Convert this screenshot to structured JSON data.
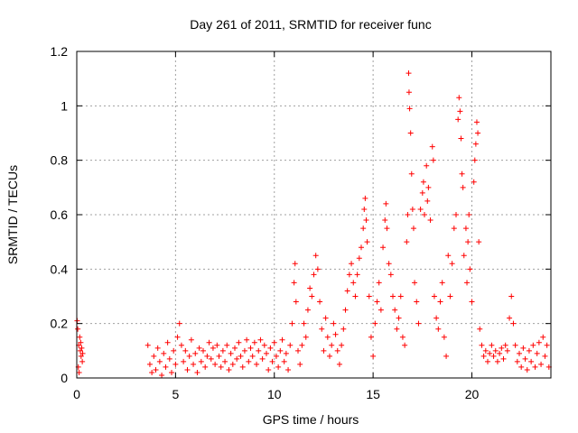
{
  "chart_data": {
    "type": "scatter",
    "title": "Day 261 of 2011, SRMTID for receiver func",
    "xlabel": "GPS time / hours",
    "ylabel": "SRMTID / TECUs",
    "xlim": [
      0,
      24
    ],
    "ylim": [
      0,
      1.2
    ],
    "xticks": [
      0,
      5,
      10,
      15,
      20
    ],
    "xtick_labels": [
      "0",
      "5",
      "10",
      "15",
      "20"
    ],
    "yticks": [
      0,
      0.2,
      0.4,
      0.6,
      0.8,
      1.0,
      1.2
    ],
    "ytick_labels": [
      "0",
      "0.2",
      "0.4",
      "0.6",
      "0.8",
      "1",
      "1.2"
    ],
    "grid": true,
    "marker": "+",
    "marker_color": "#ff0000",
    "series": [
      {
        "name": "SRMTID",
        "points": [
          [
            0.02,
            0.21
          ],
          [
            0.05,
            0.18
          ],
          [
            0.08,
            0.04
          ],
          [
            0.1,
            0.12
          ],
          [
            0.12,
            0.02
          ],
          [
            0.15,
            0.15
          ],
          [
            0.18,
            0.1
          ],
          [
            0.2,
            0.13
          ],
          [
            0.22,
            0.08
          ],
          [
            0.25,
            0.11
          ],
          [
            0.28,
            0.06
          ],
          [
            0.3,
            0.09
          ],
          [
            3.6,
            0.12
          ],
          [
            3.7,
            0.05
          ],
          [
            3.8,
            0.02
          ],
          [
            3.9,
            0.08
          ],
          [
            4.0,
            0.03
          ],
          [
            4.1,
            0.11
          ],
          [
            4.2,
            0.06
          ],
          [
            4.3,
            0.01
          ],
          [
            4.4,
            0.09
          ],
          [
            4.5,
            0.04
          ],
          [
            4.6,
            0.13
          ],
          [
            4.7,
            0.07
          ],
          [
            4.8,
            0.02
          ],
          [
            4.9,
            0.1
          ],
          [
            5.0,
            0.05
          ],
          [
            5.1,
            0.15
          ],
          [
            5.2,
            0.2
          ],
          [
            5.3,
            0.12
          ],
          [
            5.4,
            0.06
          ],
          [
            5.5,
            0.1
          ],
          [
            5.6,
            0.03
          ],
          [
            5.7,
            0.08
          ],
          [
            5.8,
            0.14
          ],
          [
            5.9,
            0.05
          ],
          [
            6.0,
            0.09
          ],
          [
            6.1,
            0.02
          ],
          [
            6.2,
            0.11
          ],
          [
            6.3,
            0.06
          ],
          [
            6.4,
            0.1
          ],
          [
            6.5,
            0.04
          ],
          [
            6.6,
            0.08
          ],
          [
            6.7,
            0.13
          ],
          [
            6.8,
            0.07
          ],
          [
            6.9,
            0.11
          ],
          [
            7.0,
            0.05
          ],
          [
            7.1,
            0.12
          ],
          [
            7.2,
            0.08
          ],
          [
            7.3,
            0.04
          ],
          [
            7.4,
            0.1
          ],
          [
            7.5,
            0.06
          ],
          [
            7.6,
            0.12
          ],
          [
            7.7,
            0.03
          ],
          [
            7.8,
            0.09
          ],
          [
            7.9,
            0.05
          ],
          [
            8.0,
            0.11
          ],
          [
            8.1,
            0.07
          ],
          [
            8.2,
            0.13
          ],
          [
            8.3,
            0.08
          ],
          [
            8.4,
            0.04
          ],
          [
            8.5,
            0.1
          ],
          [
            8.6,
            0.14
          ],
          [
            8.7,
            0.06
          ],
          [
            8.8,
            0.11
          ],
          [
            8.9,
            0.08
          ],
          [
            9.0,
            0.13
          ],
          [
            9.1,
            0.05
          ],
          [
            9.2,
            0.1
          ],
          [
            9.3,
            0.14
          ],
          [
            9.4,
            0.07
          ],
          [
            9.5,
            0.12
          ],
          [
            9.6,
            0.09
          ],
          [
            9.7,
            0.03
          ],
          [
            9.8,
            0.11
          ],
          [
            9.9,
            0.06
          ],
          [
            10.0,
            0.13
          ],
          [
            10.1,
            0.08
          ],
          [
            10.2,
            0.04
          ],
          [
            10.3,
            0.1
          ],
          [
            10.4,
            0.14
          ],
          [
            10.5,
            0.06
          ],
          [
            10.6,
            0.09
          ],
          [
            10.7,
            0.03
          ],
          [
            10.8,
            0.12
          ],
          [
            10.9,
            0.2
          ],
          [
            11.0,
            0.35
          ],
          [
            11.05,
            0.42
          ],
          [
            11.1,
            0.28
          ],
          [
            11.2,
            0.1
          ],
          [
            11.3,
            0.05
          ],
          [
            11.4,
            0.12
          ],
          [
            11.5,
            0.2
          ],
          [
            11.6,
            0.15
          ],
          [
            11.7,
            0.25
          ],
          [
            11.8,
            0.33
          ],
          [
            11.9,
            0.3
          ],
          [
            12.0,
            0.38
          ],
          [
            12.1,
            0.45
          ],
          [
            12.2,
            0.4
          ],
          [
            12.3,
            0.28
          ],
          [
            12.4,
            0.18
          ],
          [
            12.5,
            0.1
          ],
          [
            12.6,
            0.22
          ],
          [
            12.7,
            0.15
          ],
          [
            12.8,
            0.08
          ],
          [
            12.9,
            0.12
          ],
          [
            13.0,
            0.2
          ],
          [
            13.1,
            0.16
          ],
          [
            13.2,
            0.1
          ],
          [
            13.3,
            0.05
          ],
          [
            13.4,
            0.12
          ],
          [
            13.5,
            0.18
          ],
          [
            13.6,
            0.25
          ],
          [
            13.7,
            0.32
          ],
          [
            13.8,
            0.38
          ],
          [
            13.9,
            0.42
          ],
          [
            14.0,
            0.35
          ],
          [
            14.1,
            0.3
          ],
          [
            14.2,
            0.38
          ],
          [
            14.3,
            0.44
          ],
          [
            14.4,
            0.48
          ],
          [
            14.5,
            0.55
          ],
          [
            14.55,
            0.62
          ],
          [
            14.6,
            0.66
          ],
          [
            14.65,
            0.58
          ],
          [
            14.7,
            0.5
          ],
          [
            14.8,
            0.3
          ],
          [
            14.9,
            0.15
          ],
          [
            15.0,
            0.08
          ],
          [
            15.1,
            0.2
          ],
          [
            15.2,
            0.28
          ],
          [
            15.3,
            0.35
          ],
          [
            15.4,
            0.25
          ],
          [
            15.5,
            0.48
          ],
          [
            15.6,
            0.58
          ],
          [
            15.65,
            0.64
          ],
          [
            15.7,
            0.55
          ],
          [
            15.8,
            0.42
          ],
          [
            15.9,
            0.38
          ],
          [
            16.0,
            0.3
          ],
          [
            16.1,
            0.25
          ],
          [
            16.2,
            0.18
          ],
          [
            16.3,
            0.22
          ],
          [
            16.4,
            0.3
          ],
          [
            16.5,
            0.15
          ],
          [
            16.6,
            0.12
          ],
          [
            16.7,
            0.5
          ],
          [
            16.75,
            0.6
          ],
          [
            16.8,
            1.12
          ],
          [
            16.82,
            1.05
          ],
          [
            16.85,
            0.99
          ],
          [
            16.9,
            0.9
          ],
          [
            16.95,
            0.75
          ],
          [
            17.0,
            0.62
          ],
          [
            17.05,
            0.55
          ],
          [
            17.1,
            0.35
          ],
          [
            17.2,
            0.28
          ],
          [
            17.3,
            0.2
          ],
          [
            17.4,
            0.62
          ],
          [
            17.5,
            0.68
          ],
          [
            17.55,
            0.72
          ],
          [
            17.6,
            0.6
          ],
          [
            17.7,
            0.78
          ],
          [
            17.75,
            0.65
          ],
          [
            17.8,
            0.7
          ],
          [
            17.9,
            0.58
          ],
          [
            18.0,
            0.85
          ],
          [
            18.05,
            0.8
          ],
          [
            18.1,
            0.3
          ],
          [
            18.2,
            0.22
          ],
          [
            18.3,
            0.18
          ],
          [
            18.4,
            0.28
          ],
          [
            18.5,
            0.35
          ],
          [
            18.6,
            0.15
          ],
          [
            18.7,
            0.08
          ],
          [
            18.8,
            0.45
          ],
          [
            18.9,
            0.3
          ],
          [
            19.0,
            0.42
          ],
          [
            19.1,
            0.55
          ],
          [
            19.2,
            0.6
          ],
          [
            19.3,
            0.95
          ],
          [
            19.35,
            1.03
          ],
          [
            19.4,
            0.98
          ],
          [
            19.45,
            0.88
          ],
          [
            19.5,
            0.75
          ],
          [
            19.55,
            0.7
          ],
          [
            19.6,
            0.45
          ],
          [
            19.7,
            0.55
          ],
          [
            19.75,
            0.35
          ],
          [
            19.8,
            0.5
          ],
          [
            19.85,
            0.6
          ],
          [
            19.9,
            0.4
          ],
          [
            20.0,
            0.28
          ],
          [
            20.1,
            0.72
          ],
          [
            20.15,
            0.8
          ],
          [
            20.2,
            0.86
          ],
          [
            20.25,
            0.94
          ],
          [
            20.3,
            0.9
          ],
          [
            20.35,
            0.5
          ],
          [
            20.4,
            0.18
          ],
          [
            20.5,
            0.12
          ],
          [
            20.6,
            0.08
          ],
          [
            20.7,
            0.1
          ],
          [
            20.8,
            0.06
          ],
          [
            20.9,
            0.09
          ],
          [
            21.0,
            0.12
          ],
          [
            21.1,
            0.08
          ],
          [
            21.2,
            0.1
          ],
          [
            21.3,
            0.06
          ],
          [
            21.4,
            0.09
          ],
          [
            21.5,
            0.11
          ],
          [
            21.6,
            0.07
          ],
          [
            21.7,
            0.12
          ],
          [
            21.8,
            0.1
          ],
          [
            21.9,
            0.22
          ],
          [
            22.0,
            0.3
          ],
          [
            22.1,
            0.2
          ],
          [
            22.2,
            0.12
          ],
          [
            22.3,
            0.06
          ],
          [
            22.4,
            0.09
          ],
          [
            22.5,
            0.04
          ],
          [
            22.6,
            0.11
          ],
          [
            22.7,
            0.07
          ],
          [
            22.8,
            0.03
          ],
          [
            22.9,
            0.1
          ],
          [
            23.0,
            0.06
          ],
          [
            23.1,
            0.12
          ],
          [
            23.2,
            0.04
          ],
          [
            23.3,
            0.09
          ],
          [
            23.4,
            0.13
          ],
          [
            23.5,
            0.05
          ],
          [
            23.6,
            0.15
          ],
          [
            23.7,
            0.08
          ],
          [
            23.8,
            0.12
          ],
          [
            23.9,
            0.04
          ]
        ]
      }
    ]
  }
}
